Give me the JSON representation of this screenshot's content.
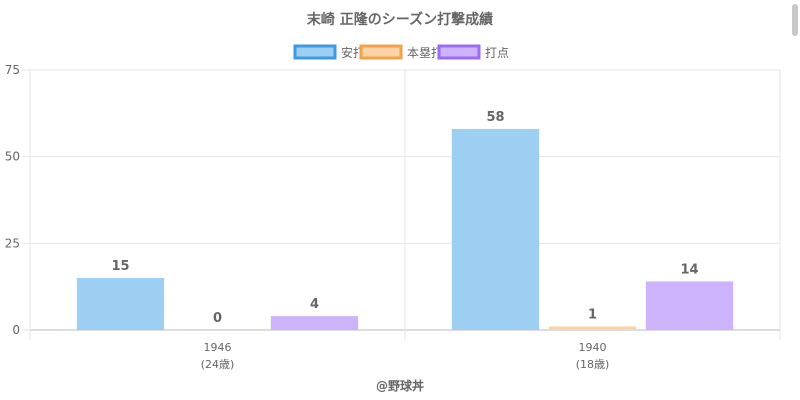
{
  "chart_data": {
    "type": "bar",
    "title": "末崎 正隆のシーズン打撃成績",
    "categories": [
      "1946",
      "1940"
    ],
    "category_sublabels": [
      "(24歳)",
      "(18歳)"
    ],
    "series": [
      {
        "name": "安打",
        "values": [
          15,
          58
        ],
        "color": "#9ccff2",
        "legend_border": "#3b9ae1"
      },
      {
        "name": "本塁打",
        "values": [
          0,
          1
        ],
        "color": "#fbd3a6",
        "legend_border": "#f5a04a"
      },
      {
        "name": "打点",
        "values": [
          4,
          14
        ],
        "color": "#cdb3fb",
        "legend_border": "#9b6bf0"
      }
    ],
    "ylim": [
      0,
      75
    ],
    "yticks": [
      0,
      25,
      50,
      75
    ],
    "grid": true,
    "legend_position": "top",
    "xlabel": "",
    "ylabel": ""
  },
  "footer": {
    "credit": "@野球丼"
  }
}
